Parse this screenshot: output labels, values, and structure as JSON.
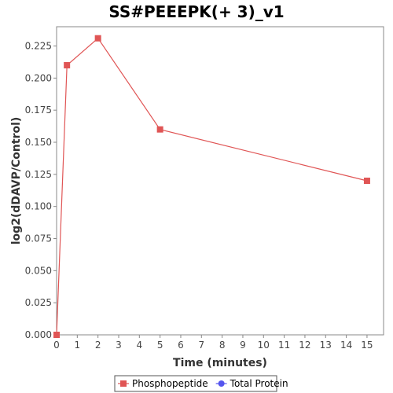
{
  "chart_data": {
    "type": "line",
    "title": "SS#PEEEPK(+ 3)_v1",
    "xlabel": "Time (minutes)",
    "ylabel": "log2(dDAVP/Control)",
    "xlim": [
      0,
      15.8
    ],
    "ylim": [
      0,
      0.24
    ],
    "x_ticks": [
      0,
      1,
      2,
      3,
      4,
      5,
      6,
      7,
      8,
      9,
      10,
      11,
      12,
      13,
      14,
      15
    ],
    "y_ticks": [
      {
        "value": 0.0,
        "label": "0.000"
      },
      {
        "value": 0.025,
        "label": "0.025"
      },
      {
        "value": 0.05,
        "label": "0.050"
      },
      {
        "value": 0.075,
        "label": "0.075"
      },
      {
        "value": 0.1,
        "label": "0.100"
      },
      {
        "value": 0.125,
        "label": "0.125"
      },
      {
        "value": 0.15,
        "label": "0.150"
      },
      {
        "value": 0.175,
        "label": "0.175"
      },
      {
        "value": 0.2,
        "label": "0.200"
      },
      {
        "value": 0.225,
        "label": "0.225"
      }
    ],
    "grid": false,
    "legend_position": "bottom-center",
    "series": [
      {
        "name": "Phosphopeptide",
        "color": "#e05555",
        "marker": "square",
        "points": [
          {
            "x": 0,
            "y": 0.0
          },
          {
            "x": 0.5,
            "y": 0.21
          },
          {
            "x": 2,
            "y": 0.231
          },
          {
            "x": 5,
            "y": 0.16
          },
          {
            "x": 15,
            "y": 0.12
          }
        ]
      },
      {
        "name": "Total Protein",
        "color": "#5555ee",
        "marker": "circle",
        "points": []
      }
    ]
  }
}
